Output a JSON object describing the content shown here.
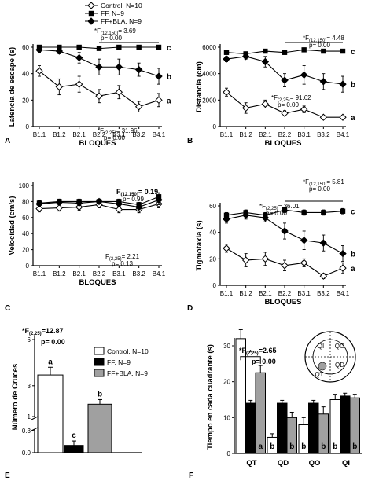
{
  "legend_top": [
    {
      "label": "Control, N=10",
      "marker": "open-diamond"
    },
    {
      "label": "FF, N=9",
      "marker": "filled-square"
    },
    {
      "label": "FF+BLA, N=9",
      "marker": "filled-diamond"
    }
  ],
  "chart_data": [
    {
      "panel": "A",
      "type": "line",
      "ylabel": "Latencia de escape (s)",
      "xlabel": "BLOQUES",
      "categories": [
        "B1.1",
        "B1.2",
        "B2.1",
        "B2.2",
        "B3.1",
        "B3.2",
        "B4.1"
      ],
      "ylim": [
        0,
        60
      ],
      "yticks": [
        0,
        20,
        40,
        60
      ],
      "series": [
        {
          "name": "Control, N=10",
          "marker": "open-diamond",
          "values": [
            42,
            30,
            32,
            23,
            26,
            15,
            20
          ],
          "errors": [
            4,
            6,
            6,
            5,
            5,
            4,
            5
          ]
        },
        {
          "name": "FF, N=9",
          "marker": "filled-square",
          "values": [
            60,
            60,
            60,
            59,
            60,
            60,
            60
          ],
          "errors": [
            1,
            1,
            1,
            1,
            1,
            1,
            1
          ]
        },
        {
          "name": "FF+BLA, N=9",
          "marker": "filled-diamond",
          "values": [
            58,
            57,
            52,
            45,
            45,
            43,
            38
          ],
          "errors": [
            2,
            2,
            4,
            6,
            6,
            5,
            6
          ]
        }
      ],
      "letters": [
        "c",
        "b",
        "a"
      ],
      "annotations": [
        {
          "text": "*F(12,150)= 3.69",
          "sub": "p= 0.00"
        },
        {
          "text": "*F(2,25)= 31.96",
          "sub": "p= 0.00"
        }
      ]
    },
    {
      "panel": "B",
      "type": "line",
      "ylabel": "Distancia (cm)",
      "xlabel": "BLOQUES",
      "categories": [
        "B1.1",
        "B1.2",
        "B2.1",
        "B2.2",
        "B3.1",
        "B3.2",
        "B4.1"
      ],
      "ylim": [
        0,
        6000
      ],
      "yticks": [
        0,
        2000,
        4000,
        6000
      ],
      "series": [
        {
          "name": "Control, N=10",
          "marker": "open-diamond",
          "values": [
            2600,
            1400,
            1700,
            1000,
            1300,
            700,
            700
          ],
          "errors": [
            300,
            400,
            300,
            200,
            250,
            150,
            150
          ]
        },
        {
          "name": "FF, N=9",
          "marker": "filled-square",
          "values": [
            5600,
            5500,
            5700,
            5600,
            5800,
            5700,
            5700
          ],
          "errors": [
            150,
            150,
            150,
            150,
            150,
            150,
            150
          ]
        },
        {
          "name": "FF+BLA, N=9",
          "marker": "filled-diamond",
          "values": [
            5100,
            5300,
            4900,
            3500,
            3900,
            3400,
            3200
          ],
          "errors": [
            200,
            200,
            400,
            500,
            700,
            600,
            600
          ]
        }
      ],
      "letters": [
        "c",
        "b",
        "a"
      ],
      "annotations": [
        {
          "text": "*F(12,150)= 4.48",
          "sub": "p= 0.00"
        },
        {
          "text": "*F(2,25)= 91.62",
          "sub": "p= 0.00"
        }
      ]
    },
    {
      "panel": "C",
      "type": "line",
      "ylabel": "Velocidad (cm/s)",
      "xlabel": "BLOQUES",
      "categories": [
        "B1.1",
        "B1.2",
        "B2.1",
        "B2.2",
        "B3.1",
        "B3.2",
        "B4.1"
      ],
      "ylim": [
        0,
        100
      ],
      "yticks": [
        0,
        20,
        40,
        60,
        80,
        100
      ],
      "series": [
        {
          "name": "Control, N=10",
          "marker": "open-diamond",
          "values": [
            71,
            72,
            73,
            76,
            70,
            70,
            77
          ],
          "errors": [
            4,
            4,
            4,
            4,
            4,
            4,
            5
          ]
        },
        {
          "name": "FF, N=9",
          "marker": "filled-square",
          "values": [
            78,
            80,
            80,
            80,
            80,
            76,
            86
          ],
          "errors": [
            3,
            3,
            3,
            3,
            3,
            3,
            5
          ]
        },
        {
          "name": "FF+BLA, N=9",
          "marker": "filled-diamond",
          "values": [
            77,
            79,
            78,
            80,
            77,
            73,
            82
          ],
          "errors": [
            3,
            3,
            3,
            3,
            3,
            3,
            6
          ]
        }
      ],
      "letters": [],
      "annotations": [
        {
          "text": "F(12,150)= 0.19",
          "sub": "p= 0.99"
        },
        {
          "text": "F(2,25)= 2.21",
          "sub": "p= 0.13"
        }
      ]
    },
    {
      "panel": "D",
      "type": "line",
      "ylabel": "Tigmotaxia (s)",
      "xlabel": "BLOQUES",
      "categories": [
        "B1.1",
        "B1.2",
        "B2.1",
        "B2.2",
        "B3.1",
        "B3.2",
        "B4.1"
      ],
      "ylim": [
        0,
        60
      ],
      "yticks": [
        0,
        20,
        40,
        60
      ],
      "series": [
        {
          "name": "Control, N=10",
          "marker": "open-diamond",
          "values": [
            28,
            19,
            20,
            15,
            17,
            7,
            13
          ],
          "errors": [
            3,
            5,
            5,
            4,
            3,
            2,
            4
          ]
        },
        {
          "name": "FF, N=9",
          "marker": "filled-square",
          "values": [
            53,
            55,
            53,
            57,
            55,
            55,
            56
          ],
          "errors": [
            2,
            2,
            2,
            2,
            2,
            2,
            2
          ]
        },
        {
          "name": "FF+BLA, N=9",
          "marker": "filled-diamond",
          "values": [
            50,
            53,
            51,
            41,
            34,
            32,
            24
          ],
          "errors": [
            3,
            3,
            3,
            6,
            7,
            6,
            6
          ]
        }
      ],
      "letters": [
        "c",
        "b",
        "a"
      ],
      "annotations": [
        {
          "text": "*F(12,150)= 5.81",
          "sub": "p= 0.00"
        },
        {
          "text": "*F(2,25)= 36.01",
          "sub": "p= 0.00"
        }
      ]
    },
    {
      "panel": "E",
      "type": "bar",
      "ylabel": "Número de Cruces",
      "categories": [
        "Control, N=10",
        "FF, N=9",
        "FF+BLA, N=9"
      ],
      "values": [
        3.7,
        0.1,
        1.8
      ],
      "errors": [
        0.5,
        0.06,
        0.3
      ],
      "bar_letters": [
        "a",
        "c",
        "b"
      ],
      "yticks_lower": [
        0.0,
        0.3
      ],
      "yticks_upper": [
        1,
        3,
        6
      ],
      "axis_break": true,
      "annotations": [
        {
          "text": "*F(2,25)=12.87",
          "sub": "p= 0.00"
        }
      ],
      "legend": [
        {
          "label": "Control, N=10",
          "color": "#ffffff"
        },
        {
          "label": "FF, N=9",
          "color": "#000000"
        },
        {
          "label": "FF+BLA, N=9",
          "color": "#a0a0a0"
        }
      ]
    },
    {
      "panel": "F",
      "type": "bar",
      "ylabel": "Tiempo en cada cuadrante (s)",
      "categories": [
        "QT",
        "QD",
        "QO",
        "QI"
      ],
      "ylim": [
        0,
        30
      ],
      "yticks": [
        0,
        10,
        20,
        30
      ],
      "series": [
        {
          "name": "Control",
          "color": "#ffffff",
          "values": [
            32,
            4.5,
            8,
            15
          ],
          "errors": [
            2.5,
            1,
            2,
            1.5
          ],
          "letters": [
            "",
            "b",
            "b",
            "b"
          ]
        },
        {
          "name": "FF",
          "color": "#000000",
          "values": [
            14,
            14,
            14,
            16
          ],
          "errors": [
            0.8,
            0.8,
            0.8,
            0.8
          ],
          "letters": [
            "",
            "",
            "",
            ""
          ]
        },
        {
          "name": "FF+BLA",
          "color": "#a0a0a0",
          "values": [
            22.5,
            10,
            11,
            15.5
          ],
          "errors": [
            2,
            1.5,
            2,
            1
          ],
          "letters": [
            "a",
            "b",
            "b",
            "b"
          ]
        }
      ],
      "annotations": [
        {
          "text": "*F(2,25)=2.65",
          "sub": "p= 0.00"
        },
        {
          "text": "*"
        }
      ],
      "inset": {
        "quadrants": [
          "QI",
          "QO",
          "QT",
          "QD"
        ]
      }
    }
  ]
}
